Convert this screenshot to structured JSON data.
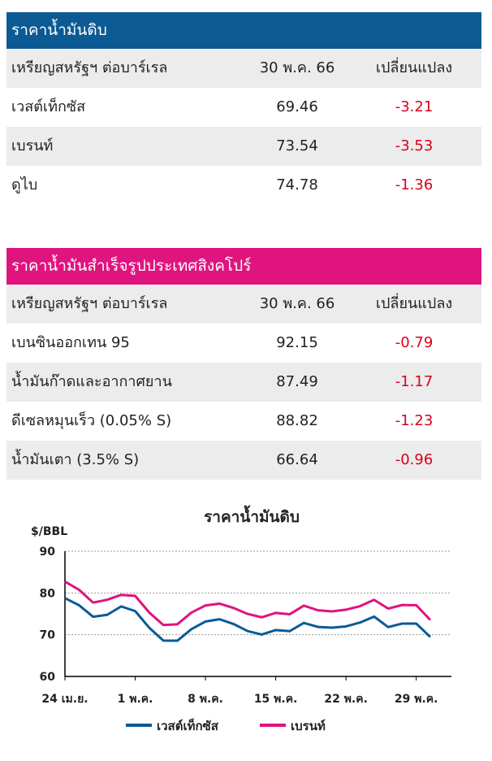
{
  "crude_table": {
    "title": "ราคาน้ำมันดิบ",
    "header": [
      "เหรียญสหรัฐฯ ต่อบาร์เรล",
      "30 พ.ค. 66",
      "เปลี่ยนแปลง"
    ],
    "rows": [
      [
        "เวสต์เท็กซัส",
        69.46,
        -3.21
      ],
      [
        "เบรนท์",
        73.54,
        -3.53
      ],
      [
        "ดูไบ",
        74.78,
        -1.36
      ]
    ]
  },
  "product_table": {
    "title": "ราคาน้ำมันสำเร็จรูปประเทศสิงคโปร์",
    "header": [
      "เหรียญสหรัฐฯ ต่อบาร์เรล",
      "30 พ.ค. 66",
      "เปลี่ยนแปลง"
    ],
    "rows": [
      [
        "เบนซินออกเทน 95",
        92.15,
        -0.79
      ],
      [
        "น้ำมันก๊าดและอากาศยาน",
        87.49,
        -1.17
      ],
      [
        "ดีเซลหมุนเร็ว (0.05% S)",
        88.82,
        -1.23
      ],
      [
        "น้ำมันเตา (3.5% S)",
        66.64,
        -0.96
      ]
    ]
  },
  "chart_data": {
    "type": "line",
    "title": "ราคาน้ำมันดิบ",
    "y_label": "$/BBL",
    "categories": [
      "24 เม.ย.",
      null,
      null,
      null,
      null,
      "1 พ.ค.",
      null,
      null,
      null,
      null,
      "8 พ.ค.",
      null,
      null,
      null,
      null,
      "15 พ.ค.",
      null,
      null,
      null,
      null,
      "22 พ.ค.",
      null,
      null,
      null,
      null,
      "29 พ.ค.",
      null
    ],
    "ylim": [
      60,
      90
    ],
    "yticks": [
      60,
      70,
      80,
      90
    ],
    "grid": true,
    "series": [
      {
        "name": "เวสต์เท็กซัส",
        "color": "#0a5a96",
        "values": [
          78.76,
          77.07,
          74.3,
          74.76,
          76.78,
          75.66,
          71.66,
          68.6,
          68.56,
          71.34,
          73.16,
          73.71,
          72.56,
          70.87,
          70.04,
          71.11,
          70.86,
          72.83,
          71.86,
          71.69,
          71.99,
          72.91,
          74.34,
          71.83,
          72.67,
          72.67,
          69.46
        ]
      },
      {
        "name": "เบรนท์",
        "color": "#e0137e",
        "values": [
          82.73,
          80.77,
          77.69,
          78.37,
          79.54,
          79.31,
          75.32,
          72.33,
          72.5,
          75.3,
          77.01,
          77.44,
          76.41,
          74.98,
          74.17,
          75.23,
          74.91,
          76.96,
          75.86,
          75.58,
          75.99,
          76.84,
          78.36,
          76.26,
          77.12,
          77.07,
          73.54
        ]
      }
    ]
  }
}
